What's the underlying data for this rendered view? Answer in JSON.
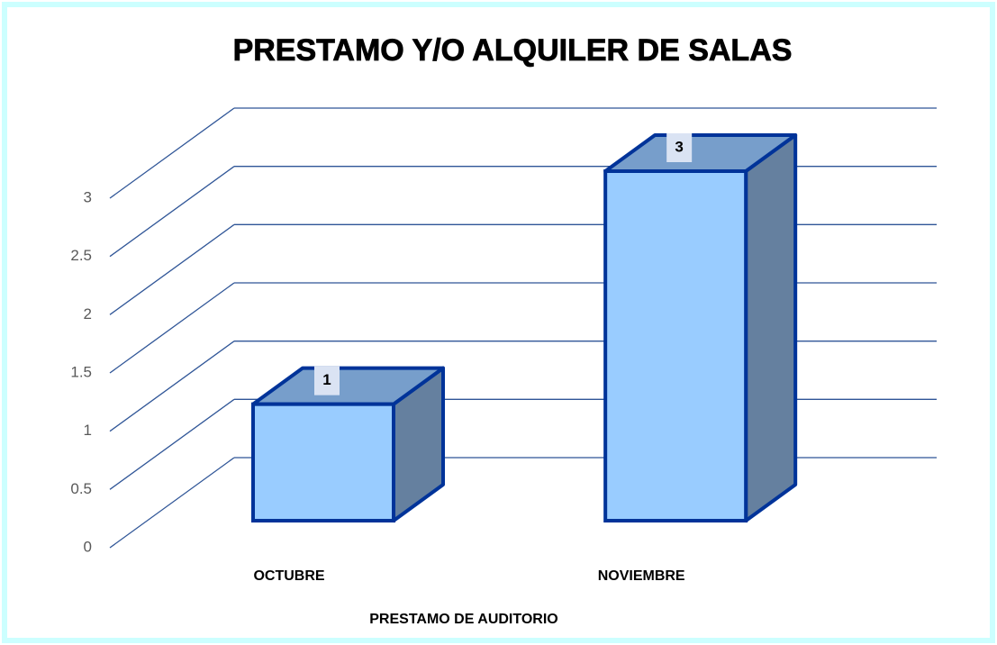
{
  "chart_data": {
    "type": "bar3d",
    "title": "PRESTAMO Y/O ALQUILER DE SALAS",
    "x_label": "PRESTAMO DE AUDITORIO",
    "categories": [
      "OCTUBRE",
      "NOVIEMBRE"
    ],
    "values": [
      1,
      3
    ],
    "color": "#99ccff",
    "ylim": [
      0,
      3
    ],
    "yticks": [
      0,
      0.5,
      1,
      1.5,
      2,
      2.5,
      3
    ],
    "grid": true
  }
}
